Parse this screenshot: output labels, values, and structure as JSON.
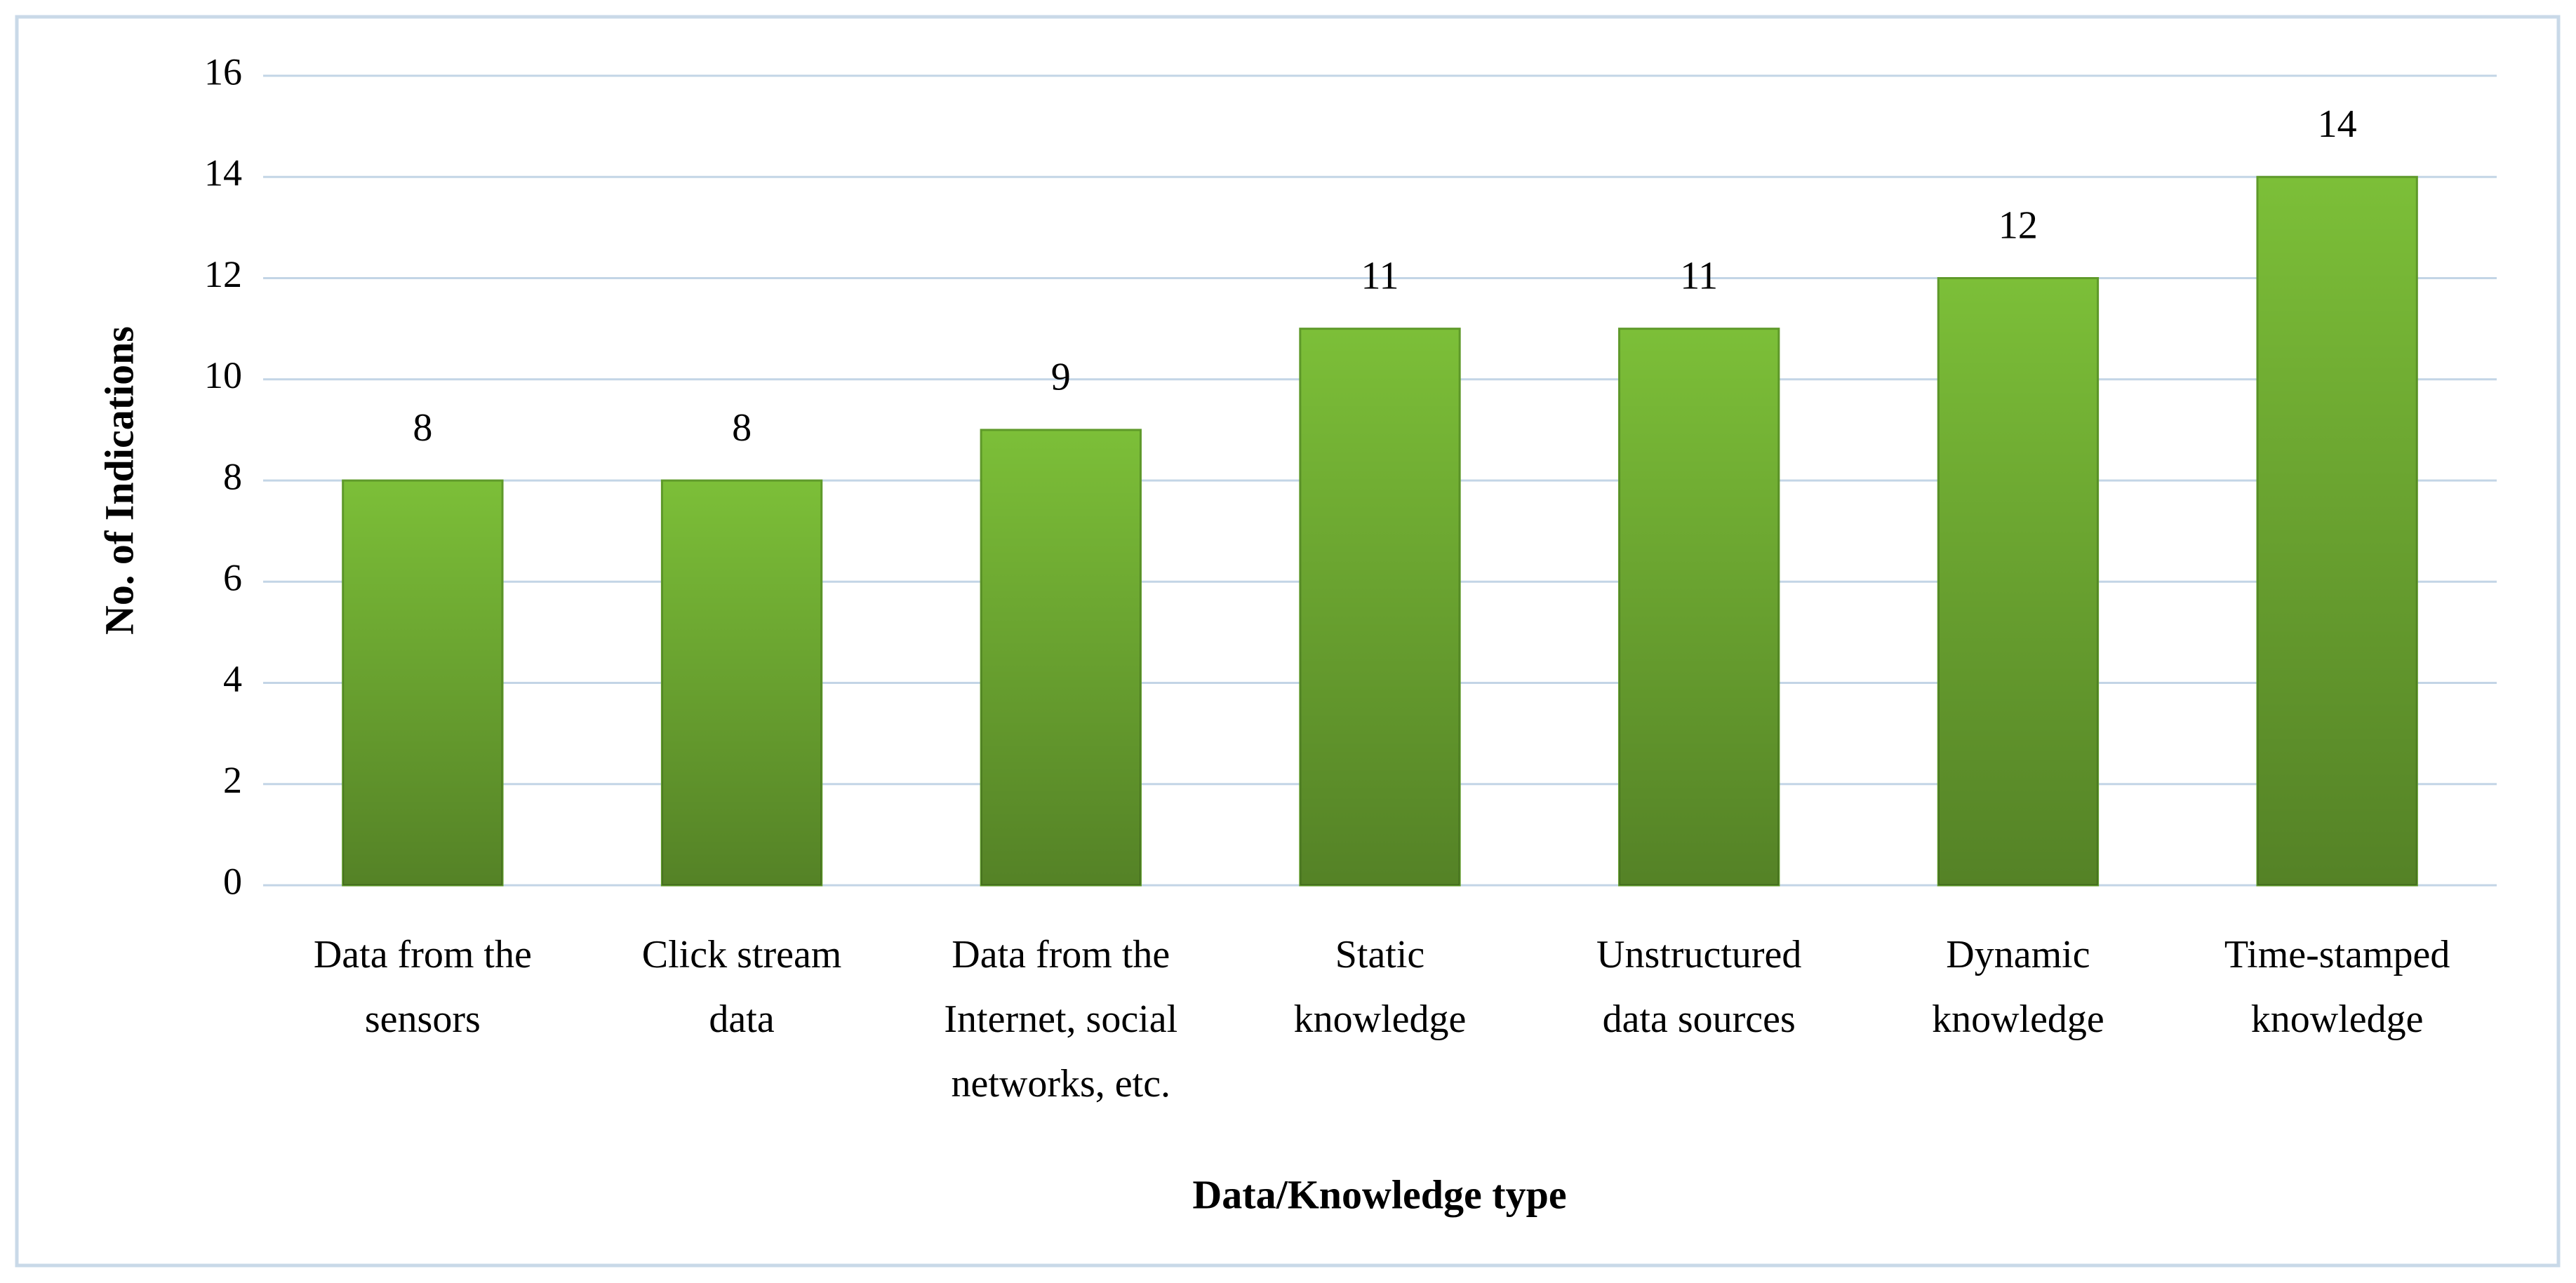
{
  "chart_data": {
    "type": "bar",
    "x_label": "Data/Knowledge type",
    "y_label": "No. of Indications",
    "categories": [
      "Data from the sensors",
      "Click stream data",
      "Data from the Internet, social networks, etc.",
      "Static knowledge",
      "Unstructured data sources",
      "Dynamic knowledge",
      "Time-stamped knowledge"
    ],
    "values": [
      8,
      8,
      9,
      11,
      11,
      12,
      14
    ],
    "color": "#7cbf38",
    "ylim": [
      0,
      16
    ],
    "yticks": [
      0,
      2,
      4,
      6,
      8,
      10,
      12,
      14,
      16
    ],
    "grid": true
  }
}
